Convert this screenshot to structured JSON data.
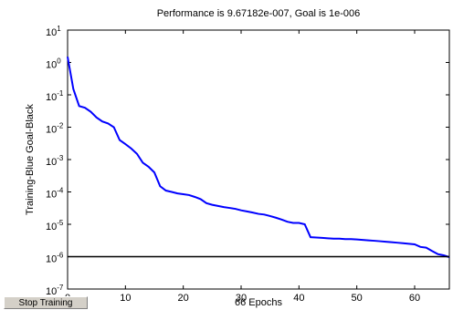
{
  "chart_data": {
    "type": "line",
    "title": "Performance is 9.67182e-007, Goal is 1e-006",
    "xlabel": "66 Epochs",
    "ylabel": "Training-Blue  Goal-Black",
    "log_y": true,
    "xlim": [
      0,
      66
    ],
    "ylim": [
      1e-07,
      10
    ],
    "xticks": [
      0,
      10,
      20,
      30,
      40,
      50,
      60
    ],
    "yticks": [
      {
        "value": 10,
        "label": "10^1"
      },
      {
        "value": 1,
        "label": "10^0"
      },
      {
        "value": 0.1,
        "label": "10^-1"
      },
      {
        "value": 0.01,
        "label": "10^-2"
      },
      {
        "value": 0.001,
        "label": "10^-3"
      },
      {
        "value": 0.0001,
        "label": "10^-4"
      },
      {
        "value": 1e-05,
        "label": "10^-5"
      },
      {
        "value": 1e-06,
        "label": "10^-6"
      },
      {
        "value": 1e-07,
        "label": "10^-7"
      }
    ],
    "series": [
      {
        "name": "Training",
        "color": "#0000ff",
        "x": [
          0,
          1,
          2,
          3,
          4,
          5,
          6,
          7,
          8,
          9,
          10,
          11,
          12,
          13,
          14,
          15,
          16,
          17,
          18,
          19,
          20,
          21,
          22,
          23,
          24,
          25,
          26,
          27,
          28,
          29,
          30,
          31,
          32,
          33,
          34,
          35,
          36,
          37,
          38,
          39,
          40,
          41,
          42,
          43,
          44,
          45,
          46,
          47,
          48,
          49,
          50,
          51,
          52,
          53,
          54,
          55,
          56,
          57,
          58,
          59,
          60,
          61,
          62,
          63,
          64,
          65,
          66
        ],
        "values": [
          1.5,
          0.15,
          0.045,
          0.04,
          0.03,
          0.02,
          0.015,
          0.013,
          0.01,
          0.004,
          0.003,
          0.0022,
          0.0015,
          0.0008,
          0.0006,
          0.0004,
          0.00015,
          0.00011,
          0.0001,
          9e-05,
          8.5e-05,
          8e-05,
          7e-05,
          6e-05,
          4.5e-05,
          4e-05,
          3.7e-05,
          3.4e-05,
          3.2e-05,
          3e-05,
          2.7e-05,
          2.5e-05,
          2.3e-05,
          2.1e-05,
          2e-05,
          1.8e-05,
          1.6e-05,
          1.4e-05,
          1.2e-05,
          1.1e-05,
          1.1e-05,
          1e-05,
          4e-06,
          3.9e-06,
          3.8e-06,
          3.7e-06,
          3.6e-06,
          3.6e-06,
          3.5e-06,
          3.5e-06,
          3.4e-06,
          3.3e-06,
          3.2e-06,
          3.1e-06,
          3e-06,
          2.9e-06,
          2.8e-06,
          2.7e-06,
          2.6e-06,
          2.5e-06,
          2.4e-06,
          2e-06,
          1.9e-06,
          1.5e-06,
          1.2e-06,
          1.1e-06,
          9.67182e-07
        ]
      },
      {
        "name": "Goal",
        "color": "#000000",
        "x": [
          0,
          66
        ],
        "values": [
          1e-06,
          1e-06
        ]
      }
    ]
  },
  "stop_button": "Stop Training"
}
